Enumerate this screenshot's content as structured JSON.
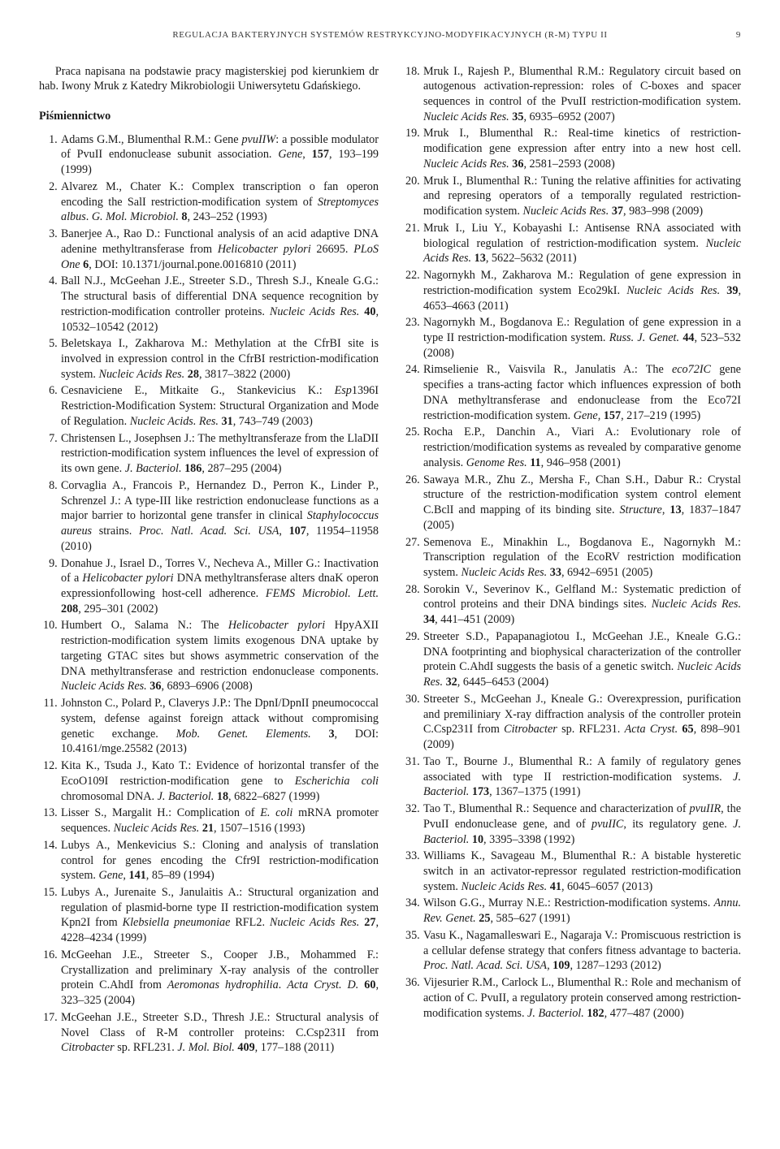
{
  "header": {
    "title": "REGULACJA BAKTERYJNYCH SYSTEMÓW RESTRYKCYJNO-MODYFIKACYJNYCH (R-M) TYPU II",
    "page": "9"
  },
  "acknowledgement": "Praca napisana na podstawie pracy magisterskiej pod kierunkiem dr hab. Iwony Mruk z Katedry Mikrobiologii Uniwersytetu Gdańskiego.",
  "bibliography_heading": "Piśmiennictwo",
  "references": [
    "Adams G.M., Blumenthal R.M.: Gene <i>pvuIIW</i>: a possible modulator of PvuII endonuclease subunit association. <i>Gene</i>, <b>157</b>, 193–199 (1999)",
    "Alvarez M., Chater K.: Complex transcription o fan operon encoding the SalI restriction-modification system of <i>Streptomyces albus</i>. <i>G. Mol. Microbiol.</i> <b>8</b>, 243–252 (1993)",
    "Banerjee A., Rao D.: Functional analysis of an acid adaptive DNA adenine methyltransferase from <i>Helicobacter pylori</i> 26695. <i>PLoS One</i> <b>6</b>, DOI: 10.1371/journal.pone.0016810 (2011)",
    "Ball N.J., McGeehan J.E., Streeter S.D., Thresh S.J., Kneale G.G.: The structural basis of differential DNA sequence recognition by restriction-modification controller proteins. <i>Nucleic Acids Res.</i> <b>40</b>, 10532–10542 (2012)",
    "Beletskaya I., Zakharova M.: Methylation at the CfrBI site is involved in expression control in the CfrBI restriction-modification system. <i>Nucleic Acids Res.</i> <b>28</b>, 3817–3822 (2000)",
    "Cesnaviciene E., Mitkaite G., Stankevicius K.: <i>Esp</i>1396I Restriction-Modification System: Structural Organization and Mode of Regulation. <i>Nucleic Acids. Res.</i> <b>31</b>, 743–749 (2003)",
    "Christensen L., Josephsen J.: The methyltransferaze from the LlaDII restriction-modification system influences the level of expression of its own gene. <i>J. Bacteriol.</i> <b>186</b>, 287–295 (2004)",
    "Corvaglia A., Francois P., Hernandez D., Perron K., Linder P., Schrenzel J.: A type-III like restriction endonuclease functions as a major barrier to horizontal gene transfer in clinical <i>Staphylococcus aureus</i> strains. <i>Proc. Natl. Acad. Sci. USA</i>, <b>107</b>, 11954–11958 (2010)",
    "Donahue J., Israel D., Torres V., Necheva A., Miller G.: Inactivation of a <i>Helicobacter pylori</i> DNA methyltransferase alters dnaK operon expressionfollowing host-cell adherence. <i>FEMS Microbiol. Lett.</i> <b>208</b>, 295–301 (2002)",
    "Humbert O., Salama N.: The <i>Helicobacter pylori</i> HpyAXII restriction-modification system limits exogenous DNA uptake by targeting GTAC sites but shows asymmetric conservation of the DNA methyltransferase and restriction endonuclease components. <i>Nucleic Acids Res.</i> <b>36</b>, 6893–6906 (2008)",
    "Johnston C., Polard P., Claverys J.P.: The DpnI/DpnII pneumococcal system, defense against foreign attack without compromising genetic exchange. <i>Mob. Genet. Elements.</i> <b>3</b>, DOI: 10.4161/mge.25582 (2013)",
    "Kita K., Tsuda J., Kato T.: Evidence of horizontal transfer of the EcoO109I restriction-modification gene to <i>Escherichia coli</i> chromosomal DNA. <i>J. Bacteriol.</i> <b>18</b>, 6822–6827 (1999)",
    "Lisser S., Margalit H.: Complication of <i>E. coli</i> mRNA promoter sequences. <i>Nucleic Acids Res.</i> <b>21</b>, 1507–1516 (1993)",
    "Lubys A., Menkevicius S.: Cloning and analysis of translation control for genes encoding the Cfr9I restriction-modification system. <i>Gene,</i> <b>141</b>, 85–89 (1994)",
    "Lubys A., Jurenaite S., Janulaitis A.: Structural organization and regulation of plasmid-borne type II restriction-modification system Kpn2I from <i>Klebsiella pneumoniae</i> RFL2. <i>Nucleic Acids Res.</i> <b>27</b>, 4228–4234 (1999)",
    "McGeehan J.E., Streeter S., Cooper J.B., Mohammed F.: Crystallization and preliminary X-ray analysis of the controller protein C.AhdI from <i>Aeromonas hydrophilia</i>. <i>Acta Cryst. D.</i> <b>60</b>, 323–325 (2004)",
    "McGeehan J.E., Streeter S.D., Thresh J.E.: Structural analysis of Novel Class of R-M controller proteins: C.Csp231I from <i>Citrobacter</i> sp. RFL231. <i>J. Mol. Biol.</i> <b>409</b>, 177–188 (2011)",
    "Mruk I., Rajesh P., Blumenthal R.M.: Regulatory circuit based on autogenous activation-repression: roles of C-boxes and spacer sequences in control of the PvuII restriction-modification system. <i>Nucleic Acids Res.</i> <b>35</b>, 6935–6952 (2007)",
    "Mruk I., Blumenthal R.: Real-time kinetics of restriction-modification gene expression after entry into a new host cell. <i>Nucleic Acids Res.</i> <b>36</b>, 2581–2593 (2008)",
    "Mruk I., Blumenthal R.: Tuning the relative affinities for activating and represing operators of a temporally regulated restriction-modification system. <i>Nucleic Acids Res.</i> <b>37</b>, 983–998 (2009)",
    "Mruk I., Liu Y., Kobayashi I.: Antisense RNA associated with biological regulation of restriction-modification system. <i>Nucleic Acids Res.</i> <b>13</b>, 5622–5632 (2011)",
    "Nagornykh M., Zakharova M.: Regulation of gene expression in restriction-modification system Eco29kI. <i>Nucleic Acids Res.</i> <b>39</b>, 4653–4663 (2011)",
    "Nagornykh M., Bogdanova E.: Regulation of gene expression in a type II restriction-modification system. <i>Russ. J. Genet.</i> <b>44</b>, 523–532 (2008)",
    "Rimselienie R., Vaisvila R., Janulatis A.: The <i>eco72IC</i> gene specifies a trans-acting factor which influences expression of both DNA methyltransferase and endonuclease from the Eco72I restriction-modification system. <i>Gene,</i> <b>157</b>, 217–219 (1995)",
    "Rocha E.P., Danchin A., Viari A.: Evolutionary role of restriction/modification systems as revealed by comparative genome analysis. <i>Genome Res.</i> <b>11</b>, 946–958 (2001)",
    "Sawaya M.R., Zhu Z., Mersha F., Chan S.H., Dabur R.: Crystal structure of the restriction-modification system control element C.BclI and mapping of its binding site. <i>Structure</i>, <b>13</b>, 1837–1847 (2005)",
    "Semenova E., Minakhin L., Bogdanova E., Nagornykh M.: Transcription regulation of the EcoRV restriction modification system. <i>Nucleic Acids Res.</i> <b>33</b>, 6942–6951 (2005)",
    "Sorokin V., Severinov K., Gelfland M.: Systematic prediction of control proteins and their DNA bindings sites. <i>Nucleic Acids Res.</i> <b>34</b>, 441–451 (2009)",
    "Streeter S.D., Papapanagiotou I., McGeehan J.E., Kneale G.G.: DNA footprinting and biophysical characterization of the controller protein C.AhdI suggests the basis of a genetic switch. <i>Nucleic Acids Res.</i> <b>32</b>, 6445–6453 (2004)",
    "Streeter S., McGeehan J., Kneale G.: Overexpression, purification and premiliniary X-ray diffraction analysis of the controller protein C.Csp231I from <i>Citrobacter</i> sp. RFL231. <i>Acta Cryst.</i> <b>65</b>, 898–901 (2009)",
    "Tao T., Bourne J., Blumenthal R.: A family of regulatory genes associated with type II restriction-modification systems. <i>J. Bacteriol.</i> <b>173</b>, 1367–1375 (1991)",
    "Tao T., Blumenthal R.: Sequence and characterization of <i>pvuIIR</i>, the PvuII endonuclease gene, and of <i>pvuIIC</i>, its regulatory gene. <i>J. Bacteriol.</i> <b>10</b>, 3395–3398 (1992)",
    "Williams K., Savageau M., Blumenthal R.: A bistable hysteretic switch in an activator-repressor regulated restriction-modification system. <i>Nucleic Acids Res.</i> <b>41</b>, 6045–6057 (2013)",
    "Wilson G.G., Murray N.E.: Restriction-modification systems. <i>Annu. Rev. Genet.</i> <b>25</b>, 585–627 (1991)",
    "Vasu K., Nagamalleswari E., Nagaraja V.: Promiscuous restriction is a cellular defense strategy that confers fitness advantage to bacteria. <i>Proc. Natl. Acad. Sci. USA</i>, <b>109</b>, 1287–1293 (2012)",
    "Vijesurier R.M., Carlock L., Blumenthal R.: Role and mechanism of action of C. PvuII, a regulatory protein conserved among restriction-modification systems. <i>J. Bacteriol.</i> <b>182</b>, 477–487 (2000)"
  ]
}
